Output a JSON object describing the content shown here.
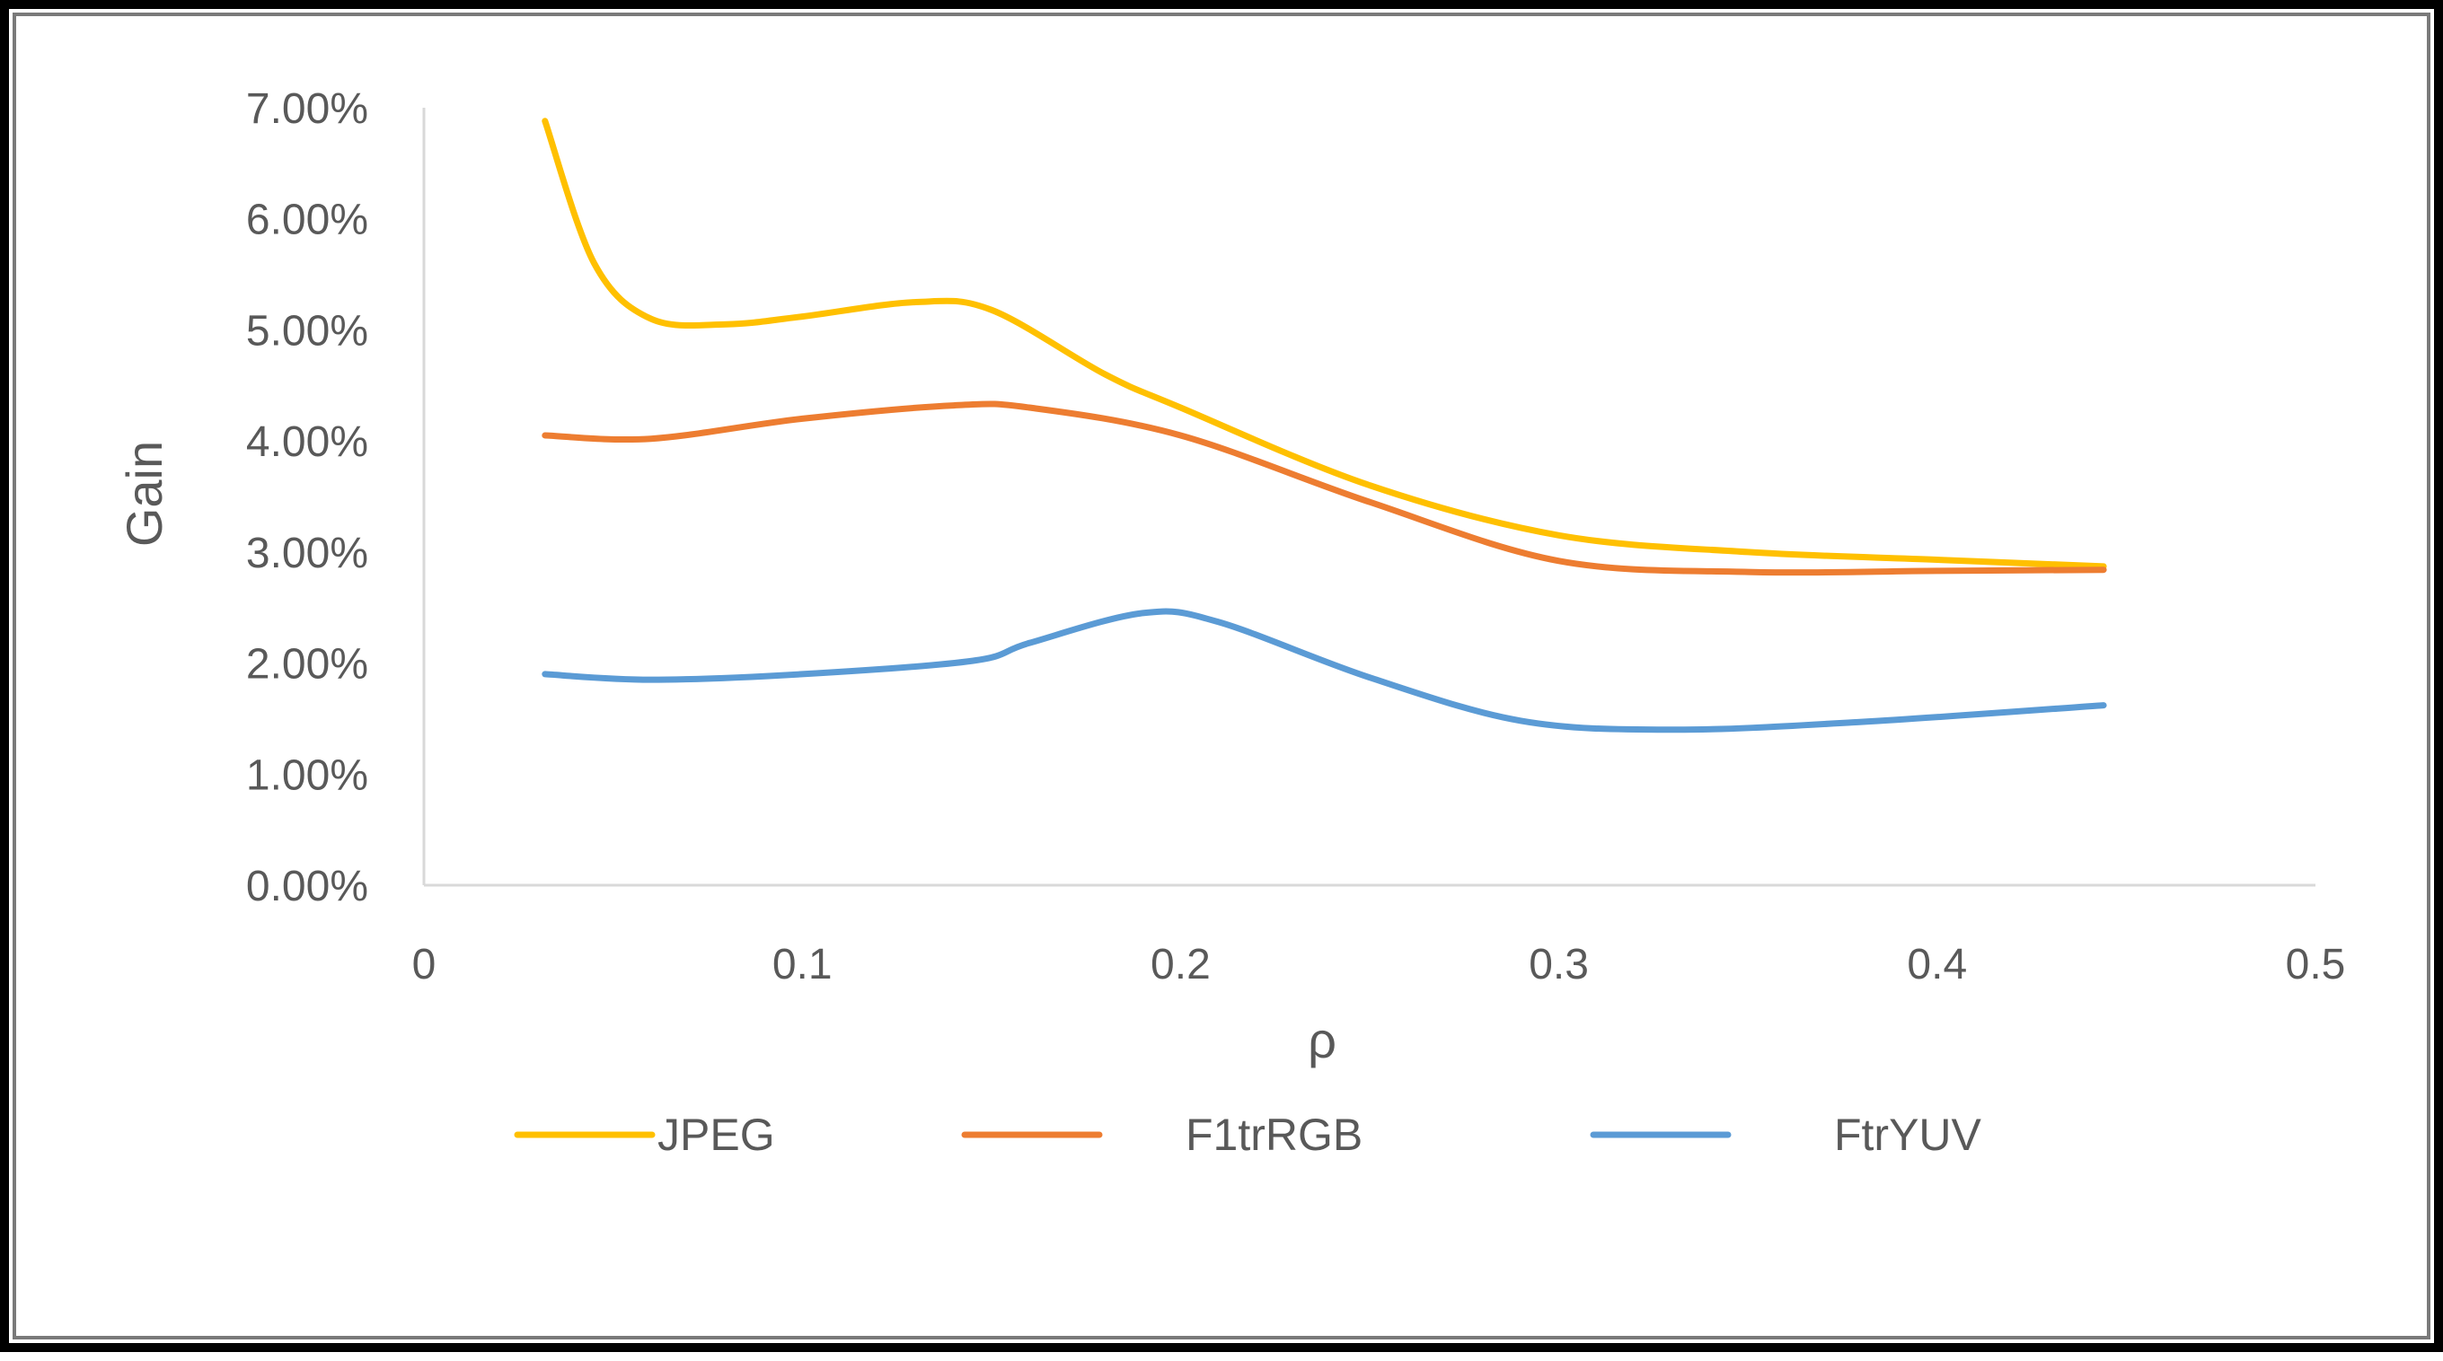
{
  "chart_data": {
    "type": "line",
    "title": "",
    "xlabel": "ρ",
    "ylabel": "Gain",
    "xlim": [
      0,
      0.5
    ],
    "ylim": [
      0,
      0.07
    ],
    "x_ticks": [
      "0",
      "0.1",
      "0.2",
      "0.3",
      "0.4",
      "0.5"
    ],
    "y_ticks": [
      "0.00%",
      "1.00%",
      "2.00%",
      "3.00%",
      "4.00%",
      "5.00%",
      "6.00%",
      "7.00%"
    ],
    "grid": false,
    "legend_position": "bottom",
    "series": [
      {
        "name": "JPEG",
        "color": "#FFC000",
        "x": [
          0.032,
          0.045,
          0.06,
          0.08,
          0.1,
          0.13,
          0.15,
          0.18,
          0.2,
          0.25,
          0.3,
          0.35,
          0.4,
          0.444
        ],
        "y": [
          0.0688,
          0.056,
          0.051,
          0.0505,
          0.0512,
          0.0525,
          0.0518,
          0.046,
          0.043,
          0.036,
          0.0315,
          0.03,
          0.0293,
          0.0287
        ]
      },
      {
        "name": "F1trRGB",
        "color": "#ED7D31",
        "x": [
          0.032,
          0.06,
          0.1,
          0.14,
          0.16,
          0.2,
          0.25,
          0.3,
          0.35,
          0.4,
          0.444
        ],
        "y": [
          0.0405,
          0.0402,
          0.042,
          0.0432,
          0.043,
          0.0405,
          0.0345,
          0.0292,
          0.0282,
          0.0283,
          0.0284
        ]
      },
      {
        "name": "FtrYUV",
        "color": "#5B9BD5",
        "x": [
          0.032,
          0.06,
          0.1,
          0.145,
          0.16,
          0.19,
          0.21,
          0.25,
          0.29,
          0.33,
          0.38,
          0.444
        ],
        "y": [
          0.019,
          0.0185,
          0.019,
          0.0202,
          0.0218,
          0.0245,
          0.0237,
          0.0187,
          0.0148,
          0.014,
          0.0147,
          0.0162
        ]
      }
    ]
  }
}
